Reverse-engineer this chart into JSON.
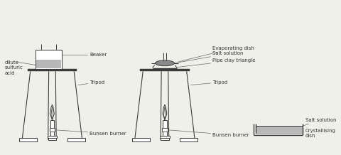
{
  "bg_color": "#f0f0ea",
  "line_color": "#3a3a3a",
  "gray_fill": "#888888",
  "light_gray": "#b8b8b8",
  "annotation_color": "#333333",
  "font_size": 5.0,
  "setup1": {
    "label_beaker": "Beaker",
    "label_dilute": "dilute\nsulfuric\nacid",
    "label_tripod": "Tripod",
    "label_bunsen": "Bunsen burner"
  },
  "setup2": {
    "label_evap": "Evaporating dish",
    "label_salt_sol": "Salt solution",
    "label_pipe": "Pipe clay triangle",
    "label_tripod": "Tripod",
    "label_bunsen": "Bunsen burner"
  },
  "setup3": {
    "label_salt": "Salt solution",
    "label_crystal": "Crystallising\ndish"
  }
}
